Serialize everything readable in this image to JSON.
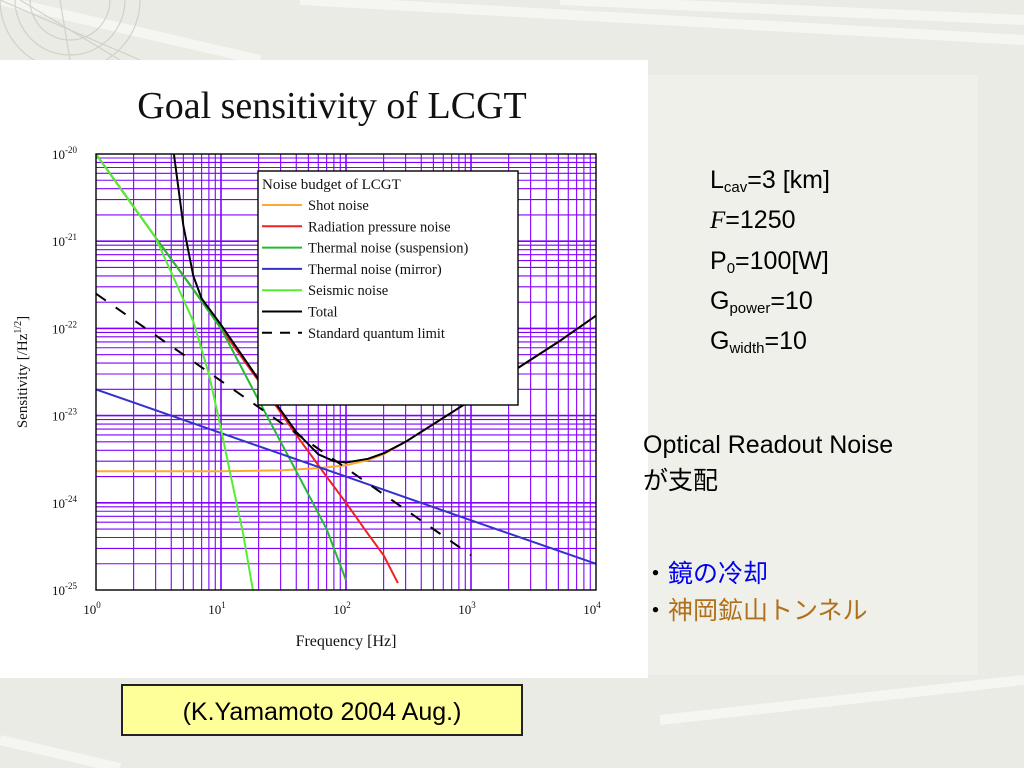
{
  "colors": {
    "shot": "#ffa733",
    "radiation": "#ee2222",
    "thermal_suspension": "#22bb33",
    "thermal_mirror": "#3333cc",
    "seismic": "#55ee33",
    "total": "#000000",
    "sql": "#000000",
    "grid": "#8000ff",
    "bullet1": "#0000ee",
    "bullet2": "#b0701c",
    "citation_bg": "#ffff99"
  },
  "params": [
    {
      "base": "L",
      "sub": "cav",
      "rest": "=3 [km]"
    },
    {
      "base": "F",
      "sub": "",
      "rest": "=1250",
      "italic": true
    },
    {
      "base": "P",
      "sub": "0",
      "rest": "=100[W]"
    },
    {
      "base": "G",
      "sub": "power",
      "rest": "=10"
    },
    {
      "base": "G",
      "sub": "width",
      "rest": "=10"
    }
  ],
  "readout": {
    "line1": "Optical Readout Noise",
    "line2": "が支配"
  },
  "bullets": [
    {
      "marker": "・",
      "text": "鏡の冷却"
    },
    {
      "marker": "・",
      "text": "神岡鉱山トンネル"
    }
  ],
  "citation": "(K.Yamamoto 2004 Aug.)",
  "chart_data": {
    "type": "line",
    "title": "Goal sensitivity of LCGT",
    "xlabel": "Frequency [Hz]",
    "ylabel": "Sensitivity [/Hz",
    "ylabel_sup": "1/2",
    "ylabel_end": "]",
    "xscale": "log",
    "yscale": "log",
    "xlim": [
      1,
      10000
    ],
    "ylim": [
      1e-25,
      1e-20
    ],
    "grid": true,
    "x_ticks": [
      {
        "base": "10",
        "exp": "0"
      },
      {
        "base": "10",
        "exp": "1"
      },
      {
        "base": "10",
        "exp": "2"
      },
      {
        "base": "10",
        "exp": "3"
      },
      {
        "base": "10",
        "exp": "4"
      }
    ],
    "y_ticks": [
      {
        "base": "10",
        "exp": "-20"
      },
      {
        "base": "10",
        "exp": "-21"
      },
      {
        "base": "10",
        "exp": "-22"
      },
      {
        "base": "10",
        "exp": "-23"
      },
      {
        "base": "10",
        "exp": "-24"
      },
      {
        "base": "10",
        "exp": "-25"
      }
    ],
    "legend_title": "Noise budget of LCGT",
    "legend_position": "top-right",
    "series": [
      {
        "name": "Shot noise",
        "color_key": "shot",
        "dash": false,
        "x": [
          1,
          10,
          30,
          60,
          100,
          150,
          200,
          300,
          500,
          1000,
          2000,
          5000,
          10000
        ],
        "y": [
          2.3e-24,
          2.3e-24,
          2.35e-24,
          2.5e-24,
          2.7e-24,
          3.1e-24,
          3.6e-24,
          5e-24,
          8e-24,
          1.5e-23,
          3e-23,
          7e-23,
          1.4e-22
        ]
      },
      {
        "name": "Radiation pressure noise",
        "color_key": "radiation",
        "dash": false,
        "x": [
          1,
          3,
          6,
          10,
          20,
          40,
          70,
          100,
          150,
          200,
          260
        ],
        "y": [
          1e-20,
          1.1e-21,
          2.8e-22,
          1e-22,
          2.5e-23,
          6e-24,
          2e-24,
          1e-24,
          4.4e-25,
          2.5e-25,
          1.2e-25
        ]
      },
      {
        "name": "Thermal noise (suspension)",
        "color_key": "thermal_suspension",
        "dash": false,
        "x": [
          1,
          3,
          6,
          10,
          20,
          40,
          70,
          100
        ],
        "y": [
          1e-20,
          1.1e-21,
          2.8e-22,
          1e-22,
          1.5e-23,
          2.3e-24,
          5e-25,
          1.3e-25
        ]
      },
      {
        "name": "Thermal noise (mirror)",
        "color_key": "thermal_mirror",
        "dash": false,
        "x": [
          1,
          10,
          100,
          1000,
          10000
        ],
        "y": [
          2e-23,
          6.3e-24,
          2e-24,
          6.3e-25,
          2e-25
        ]
      },
      {
        "name": "Seismic noise",
        "color_key": "seismic",
        "dash": false,
        "x": [
          1,
          3,
          6,
          8,
          10,
          12,
          15,
          18
        ],
        "y": [
          1e-20,
          1.1e-21,
          1.2e-22,
          3e-23,
          7e-24,
          2e-24,
          4.5e-25,
          1e-25
        ]
      },
      {
        "name": "Total",
        "color_key": "total",
        "dash": false,
        "x": [
          4.2,
          5,
          6,
          7,
          10,
          20,
          40,
          60,
          80,
          100,
          150,
          200,
          300,
          500,
          1000,
          2000,
          5000,
          10000
        ],
        "y": [
          1e-20,
          1.5e-21,
          4e-22,
          2.2e-22,
          1.1e-22,
          2.6e-23,
          6.5e-24,
          3.6e-24,
          3e-24,
          2.9e-24,
          3.2e-24,
          3.7e-24,
          5e-24,
          8e-24,
          1.5e-23,
          3e-23,
          7e-23,
          1.4e-22
        ]
      },
      {
        "name": "Standard quantum limit",
        "color_key": "sql",
        "dash": true,
        "x": [
          1,
          10,
          100,
          1000
        ],
        "y": [
          2.5e-22,
          2.5e-23,
          2.5e-24,
          2.5e-25
        ]
      }
    ]
  }
}
